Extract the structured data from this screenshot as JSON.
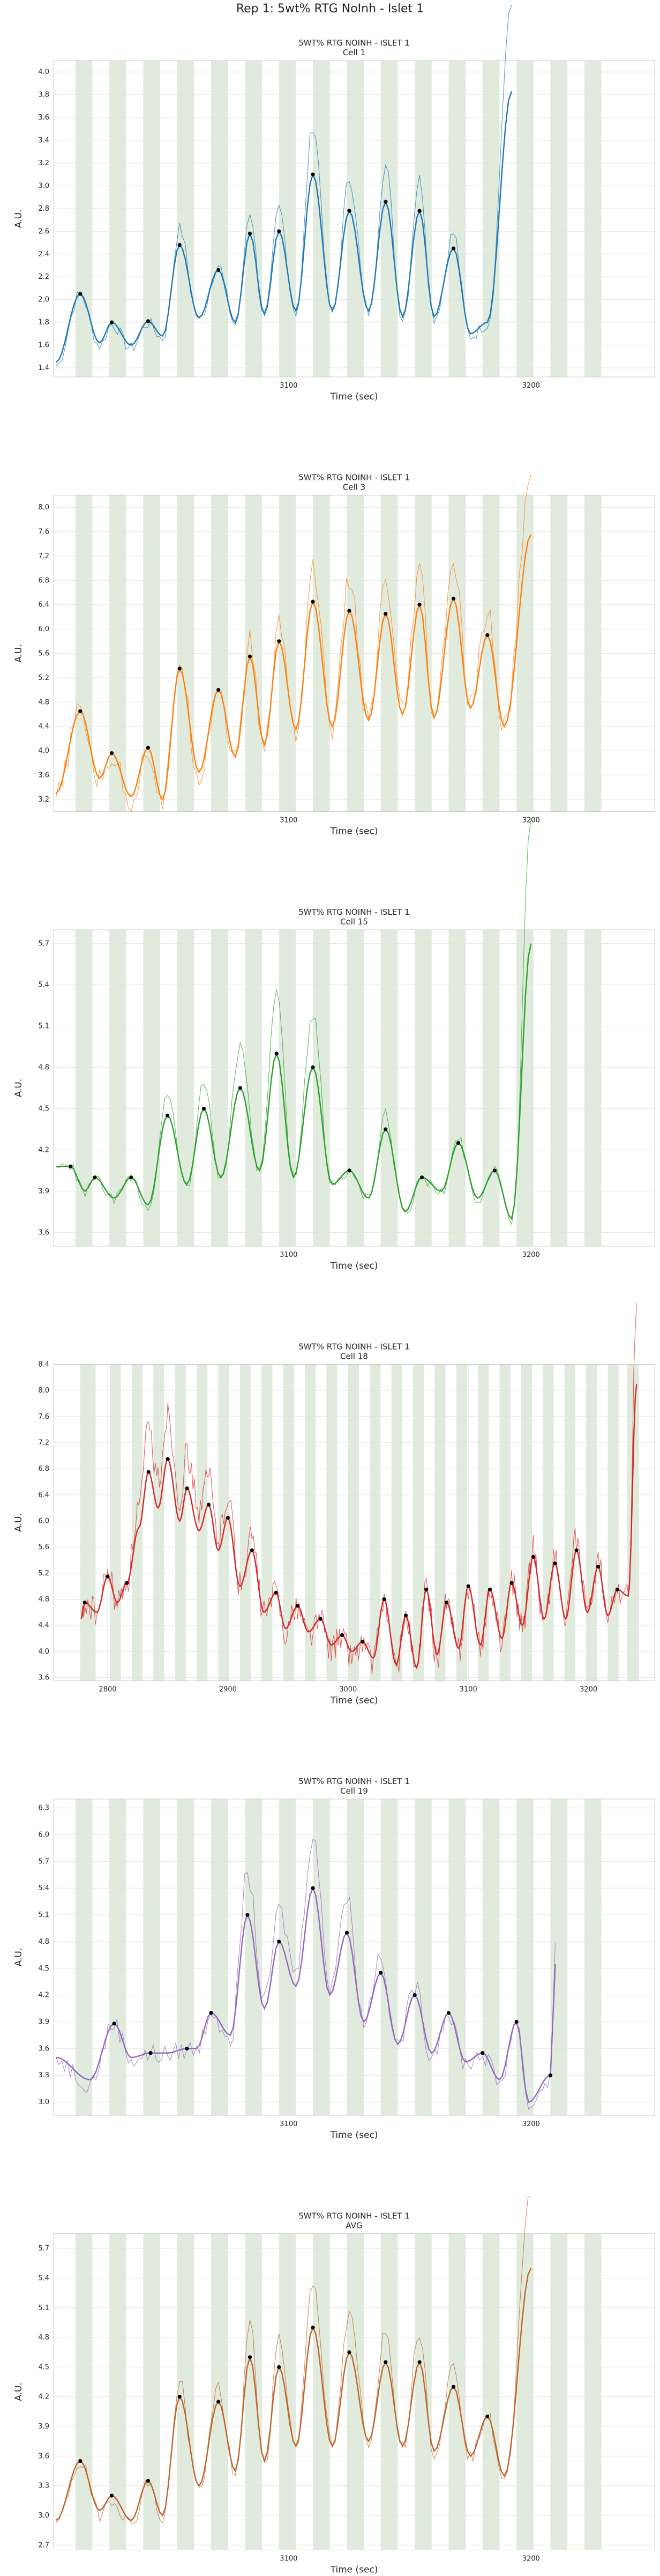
{
  "suptitle": "Rep 1: 5wt% RTG NoInh - Islet 1",
  "chart_data": [
    {
      "type": "line",
      "title": "5WT% RTG NOINH - ISLET 1",
      "subtitle": "Cell 1",
      "xlabel": "Time (sec)",
      "ylabel": "A.U.",
      "xlim": [
        3003,
        3251
      ],
      "ylim": [
        1.32,
        4.1
      ],
      "xticks": [
        3100,
        3200
      ],
      "yticks": [
        1.4,
        1.6,
        1.8,
        2.0,
        2.2,
        2.4,
        2.6,
        2.8,
        3.0,
        3.2,
        3.4,
        3.6,
        3.8,
        4.0
      ],
      "color": "#1f77b4",
      "grid": true,
      "stim_bands": [
        [
          3012,
          3019
        ],
        [
          3026,
          3033
        ],
        [
          3040,
          3047
        ],
        [
          3054,
          3061
        ],
        [
          3068,
          3075
        ],
        [
          3082,
          3089
        ],
        [
          3096,
          3103
        ],
        [
          3110,
          3117
        ],
        [
          3124,
          3131
        ],
        [
          3138,
          3145
        ],
        [
          3152,
          3159
        ],
        [
          3166,
          3173
        ],
        [
          3180,
          3187
        ],
        [
          3194,
          3201
        ],
        [
          3208,
          3215
        ],
        [
          3222,
          3229
        ]
      ],
      "peaks": [
        [
          3014,
          2.05
        ],
        [
          3027,
          1.8
        ],
        [
          3042,
          1.81
        ],
        [
          3055,
          2.48
        ],
        [
          3071,
          2.26
        ],
        [
          3084,
          2.58
        ],
        [
          3096,
          2.6
        ],
        [
          3110,
          3.1
        ],
        [
          3125,
          2.78
        ],
        [
          3140,
          2.86
        ],
        [
          3154,
          2.78
        ],
        [
          3168,
          2.45
        ]
      ],
      "troughs": [
        [
          3004,
          1.45
        ],
        [
          3022,
          1.62
        ],
        [
          3035,
          1.6
        ],
        [
          3048,
          1.68
        ],
        [
          3063,
          1.84
        ],
        [
          3078,
          1.8
        ],
        [
          3090,
          1.87
        ],
        [
          3103,
          1.9
        ],
        [
          3118,
          1.9
        ],
        [
          3133,
          1.9
        ],
        [
          3147,
          1.85
        ],
        [
          3160,
          1.85
        ],
        [
          3175,
          1.7
        ],
        [
          3182,
          1.8
        ],
        [
          3192,
          3.83
        ]
      ],
      "noise": 0.06,
      "amp": 1.45
    },
    {
      "type": "line",
      "title": "5WT% RTG NOINH - ISLET 1",
      "subtitle": "Cell 3",
      "xlabel": "Time (sec)",
      "ylabel": "A.U.",
      "xlim": [
        3003,
        3251
      ],
      "ylim": [
        3.0,
        8.2
      ],
      "xticks": [
        3100,
        3200
      ],
      "yticks": [
        3.2,
        3.6,
        4.0,
        4.4,
        4.8,
        5.2,
        5.6,
        6.0,
        6.4,
        6.8,
        7.2,
        7.6,
        8.0
      ],
      "color": "#ff7f0e",
      "grid": true,
      "stim_bands": [
        [
          3012,
          3019
        ],
        [
          3026,
          3033
        ],
        [
          3040,
          3047
        ],
        [
          3054,
          3061
        ],
        [
          3068,
          3075
        ],
        [
          3082,
          3089
        ],
        [
          3096,
          3103
        ],
        [
          3110,
          3117
        ],
        [
          3124,
          3131
        ],
        [
          3138,
          3145
        ],
        [
          3152,
          3159
        ],
        [
          3166,
          3173
        ],
        [
          3180,
          3187
        ],
        [
          3194,
          3201
        ],
        [
          3208,
          3215
        ],
        [
          3222,
          3229
        ]
      ],
      "peaks": [
        [
          3014,
          4.65
        ],
        [
          3027,
          3.96
        ],
        [
          3042,
          4.05
        ],
        [
          3055,
          5.35
        ],
        [
          3071,
          5.0
        ],
        [
          3084,
          5.55
        ],
        [
          3096,
          5.8
        ],
        [
          3110,
          6.45
        ],
        [
          3125,
          6.3
        ],
        [
          3140,
          6.25
        ],
        [
          3154,
          6.4
        ],
        [
          3168,
          6.5
        ],
        [
          3182,
          5.9
        ]
      ],
      "troughs": [
        [
          3004,
          3.3
        ],
        [
          3022,
          3.55
        ],
        [
          3035,
          3.25
        ],
        [
          3048,
          3.2
        ],
        [
          3063,
          3.65
        ],
        [
          3078,
          3.9
        ],
        [
          3090,
          4.1
        ],
        [
          3103,
          4.35
        ],
        [
          3118,
          4.4
        ],
        [
          3133,
          4.5
        ],
        [
          3147,
          4.6
        ],
        [
          3160,
          4.55
        ],
        [
          3175,
          4.7
        ],
        [
          3189,
          4.4
        ],
        [
          3200,
          7.55
        ]
      ],
      "noise": 0.12,
      "amp": 1.35
    },
    {
      "type": "line",
      "title": "5WT% RTG NOINH - ISLET 1",
      "subtitle": "Cell 15",
      "xlabel": "Time (sec)",
      "ylabel": "A.U.",
      "xlim": [
        3003,
        3251
      ],
      "ylim": [
        3.5,
        5.8
      ],
      "xticks": [
        3100,
        3200
      ],
      "yticks": [
        3.6,
        3.9,
        4.2,
        4.5,
        4.8,
        5.1,
        5.4,
        5.7
      ],
      "color": "#2ca02c",
      "grid": true,
      "stim_bands": [
        [
          3012,
          3019
        ],
        [
          3026,
          3033
        ],
        [
          3040,
          3047
        ],
        [
          3054,
          3061
        ],
        [
          3068,
          3075
        ],
        [
          3082,
          3089
        ],
        [
          3096,
          3103
        ],
        [
          3110,
          3117
        ],
        [
          3124,
          3131
        ],
        [
          3138,
          3145
        ],
        [
          3152,
          3159
        ],
        [
          3166,
          3173
        ],
        [
          3180,
          3187
        ],
        [
          3194,
          3201
        ],
        [
          3208,
          3215
        ],
        [
          3222,
          3229
        ]
      ],
      "peaks": [
        [
          3010,
          4.08
        ],
        [
          3020,
          4.0
        ],
        [
          3035,
          4.0
        ],
        [
          3050,
          4.45
        ],
        [
          3065,
          4.5
        ],
        [
          3080,
          4.65
        ],
        [
          3095,
          4.9
        ],
        [
          3110,
          4.8
        ],
        [
          3125,
          4.05
        ],
        [
          3140,
          4.35
        ],
        [
          3155,
          4.0
        ],
        [
          3170,
          4.25
        ],
        [
          3185,
          4.05
        ]
      ],
      "troughs": [
        [
          3004,
          4.08
        ],
        [
          3016,
          3.9
        ],
        [
          3028,
          3.85
        ],
        [
          3042,
          3.8
        ],
        [
          3058,
          3.95
        ],
        [
          3072,
          4.0
        ],
        [
          3088,
          4.05
        ],
        [
          3102,
          4.0
        ],
        [
          3118,
          3.95
        ],
        [
          3133,
          3.85
        ],
        [
          3148,
          3.75
        ],
        [
          3163,
          3.9
        ],
        [
          3178,
          3.85
        ],
        [
          3192,
          3.7
        ],
        [
          3200,
          5.7
        ]
      ],
      "noise": 0.05,
      "amp": 1.6
    },
    {
      "type": "line",
      "title": "5WT% RTG NOINH - ISLET 1",
      "subtitle": "Cell 18",
      "xlabel": "Time (sec)",
      "ylabel": "A.U.",
      "xlim": [
        2755,
        3255
      ],
      "ylim": [
        3.55,
        8.4
      ],
      "xticks": [
        2800,
        2900,
        3000,
        3100,
        3200
      ],
      "yticks": [
        3.6,
        4.0,
        4.4,
        4.8,
        5.2,
        5.6,
        6.0,
        6.4,
        6.8,
        7.2,
        7.6,
        8.0,
        8.4
      ],
      "color": "#d62728",
      "grid": true,
      "stim_bands": [
        [
          2777,
          2790
        ],
        [
          2802,
          2811
        ],
        [
          2820,
          2829
        ],
        [
          2838,
          2847
        ],
        [
          2856,
          2865
        ],
        [
          2874,
          2883
        ],
        [
          2892,
          2901
        ],
        [
          2910,
          2919
        ],
        [
          2928,
          2937
        ],
        [
          2946,
          2955
        ],
        [
          2964,
          2973
        ],
        [
          2982,
          2991
        ],
        [
          3000,
          3009
        ],
        [
          3018,
          3027
        ],
        [
          3036,
          3045
        ],
        [
          3054,
          3063
        ],
        [
          3072,
          3081
        ],
        [
          3090,
          3099
        ],
        [
          3108,
          3117
        ],
        [
          3126,
          3135
        ],
        [
          3144,
          3153
        ],
        [
          3162,
          3171
        ],
        [
          3180,
          3189
        ],
        [
          3198,
          3207
        ],
        [
          3216,
          3225
        ],
        [
          3232,
          3242
        ]
      ],
      "peaks": [
        [
          2781,
          4.75
        ],
        [
          2800,
          5.15
        ],
        [
          2816,
          5.05
        ],
        [
          2834,
          6.75
        ],
        [
          2850,
          6.95
        ],
        [
          2866,
          6.5
        ],
        [
          2884,
          6.25
        ],
        [
          2900,
          6.05
        ],
        [
          2920,
          5.55
        ],
        [
          2940,
          4.9
        ],
        [
          2958,
          4.7
        ],
        [
          2977,
          4.5
        ],
        [
          2995,
          4.25
        ],
        [
          3012,
          4.15
        ],
        [
          3030,
          4.8
        ],
        [
          3048,
          4.55
        ],
        [
          3065,
          4.95
        ],
        [
          3082,
          4.75
        ],
        [
          3100,
          5.0
        ],
        [
          3118,
          4.95
        ],
        [
          3136,
          5.05
        ],
        [
          3154,
          5.45
        ],
        [
          3172,
          5.35
        ],
        [
          3190,
          5.55
        ],
        [
          3208,
          5.3
        ],
        [
          3224,
          4.95
        ]
      ],
      "troughs": [
        [
          2778,
          4.5
        ],
        [
          2791,
          4.6
        ],
        [
          2808,
          4.75
        ],
        [
          2826,
          5.9
        ],
        [
          2842,
          6.2
        ],
        [
          2860,
          6.0
        ],
        [
          2876,
          5.85
        ],
        [
          2892,
          5.55
        ],
        [
          2910,
          5.0
        ],
        [
          2930,
          4.6
        ],
        [
          2948,
          4.35
        ],
        [
          2967,
          4.3
        ],
        [
          2986,
          4.1
        ],
        [
          3003,
          4.0
        ],
        [
          3021,
          3.9
        ],
        [
          3040,
          3.8
        ],
        [
          3057,
          3.75
        ],
        [
          3074,
          3.95
        ],
        [
          3092,
          4.05
        ],
        [
          3110,
          4.1
        ],
        [
          3128,
          4.2
        ],
        [
          3145,
          4.4
        ],
        [
          3163,
          4.5
        ],
        [
          3181,
          4.5
        ],
        [
          3199,
          4.6
        ],
        [
          3216,
          4.55
        ],
        [
          3233,
          4.85
        ],
        [
          3240,
          8.1
        ]
      ],
      "noise": 0.14,
      "amp": 1.35
    },
    {
      "type": "line",
      "title": "5WT% RTG NOINH - ISLET 1",
      "subtitle": "Cell 19",
      "xlabel": "Time (sec)",
      "ylabel": "A.U.",
      "xlim": [
        3003,
        3251
      ],
      "ylim": [
        2.85,
        6.4
      ],
      "xticks": [
        3100,
        3200
      ],
      "yticks": [
        3.0,
        3.3,
        3.6,
        3.9,
        4.2,
        4.5,
        4.8,
        5.1,
        5.4,
        5.7,
        6.0,
        6.3
      ],
      "color": "#9467bd",
      "grid": true,
      "stim_bands": [
        [
          3012,
          3019
        ],
        [
          3026,
          3033
        ],
        [
          3040,
          3047
        ],
        [
          3054,
          3061
        ],
        [
          3068,
          3075
        ],
        [
          3082,
          3089
        ],
        [
          3096,
          3103
        ],
        [
          3110,
          3117
        ],
        [
          3124,
          3131
        ],
        [
          3138,
          3145
        ],
        [
          3152,
          3159
        ],
        [
          3166,
          3173
        ],
        [
          3180,
          3187
        ],
        [
          3194,
          3201
        ],
        [
          3208,
          3215
        ],
        [
          3222,
          3229
        ]
      ],
      "peaks": [
        [
          3028,
          3.88
        ],
        [
          3043,
          3.55
        ],
        [
          3058,
          3.6
        ],
        [
          3068,
          4.0
        ],
        [
          3083,
          5.1
        ],
        [
          3096,
          4.8
        ],
        [
          3110,
          5.4
        ],
        [
          3124,
          4.9
        ],
        [
          3138,
          4.45
        ],
        [
          3152,
          4.2
        ],
        [
          3166,
          4.0
        ],
        [
          3180,
          3.55
        ],
        [
          3194,
          3.9
        ],
        [
          3208,
          3.3
        ]
      ],
      "troughs": [
        [
          3004,
          3.5
        ],
        [
          3018,
          3.25
        ],
        [
          3035,
          3.5
        ],
        [
          3050,
          3.55
        ],
        [
          3062,
          3.6
        ],
        [
          3076,
          3.75
        ],
        [
          3090,
          4.05
        ],
        [
          3103,
          4.3
        ],
        [
          3117,
          4.2
        ],
        [
          3131,
          3.9
        ],
        [
          3145,
          3.65
        ],
        [
          3159,
          3.55
        ],
        [
          3173,
          3.45
        ],
        [
          3187,
          3.25
        ],
        [
          3199,
          3.0
        ],
        [
          3210,
          4.55
        ]
      ],
      "noise": 0.1,
      "amp": 1.4
    },
    {
      "type": "line",
      "title": "5WT% RTG NOINH - ISLET 1",
      "subtitle": "AVG",
      "xlabel": "Time (sec)",
      "ylabel": "A.U.",
      "xlim": [
        3003,
        3251
      ],
      "ylim": [
        2.65,
        5.85
      ],
      "xticks": [
        3100,
        3200
      ],
      "yticks": [
        2.7,
        3.0,
        3.3,
        3.6,
        3.9,
        4.2,
        4.5,
        4.8,
        5.1,
        5.4,
        5.7
      ],
      "color": "#c0642c",
      "grid": true,
      "stim_bands": [
        [
          3012,
          3019
        ],
        [
          3026,
          3033
        ],
        [
          3040,
          3047
        ],
        [
          3054,
          3061
        ],
        [
          3068,
          3075
        ],
        [
          3082,
          3089
        ],
        [
          3096,
          3103
        ],
        [
          3110,
          3117
        ],
        [
          3124,
          3131
        ],
        [
          3138,
          3145
        ],
        [
          3152,
          3159
        ],
        [
          3166,
          3173
        ],
        [
          3180,
          3187
        ],
        [
          3194,
          3201
        ],
        [
          3208,
          3215
        ],
        [
          3222,
          3229
        ]
      ],
      "peaks": [
        [
          3014,
          3.55
        ],
        [
          3027,
          3.2
        ],
        [
          3042,
          3.35
        ],
        [
          3055,
          4.2
        ],
        [
          3071,
          4.15
        ],
        [
          3084,
          4.6
        ],
        [
          3096,
          4.5
        ],
        [
          3110,
          4.9
        ],
        [
          3125,
          4.65
        ],
        [
          3140,
          4.55
        ],
        [
          3154,
          4.55
        ],
        [
          3168,
          4.3
        ],
        [
          3182,
          4.0
        ]
      ],
      "troughs": [
        [
          3004,
          2.95
        ],
        [
          3022,
          3.05
        ],
        [
          3035,
          2.95
        ],
        [
          3048,
          3.0
        ],
        [
          3063,
          3.3
        ],
        [
          3078,
          3.45
        ],
        [
          3090,
          3.55
        ],
        [
          3103,
          3.7
        ],
        [
          3118,
          3.7
        ],
        [
          3133,
          3.75
        ],
        [
          3147,
          3.7
        ],
        [
          3160,
          3.65
        ],
        [
          3175,
          3.6
        ],
        [
          3189,
          3.4
        ],
        [
          3200,
          5.5
        ]
      ],
      "noise": 0.07,
      "amp": 1.45
    }
  ]
}
